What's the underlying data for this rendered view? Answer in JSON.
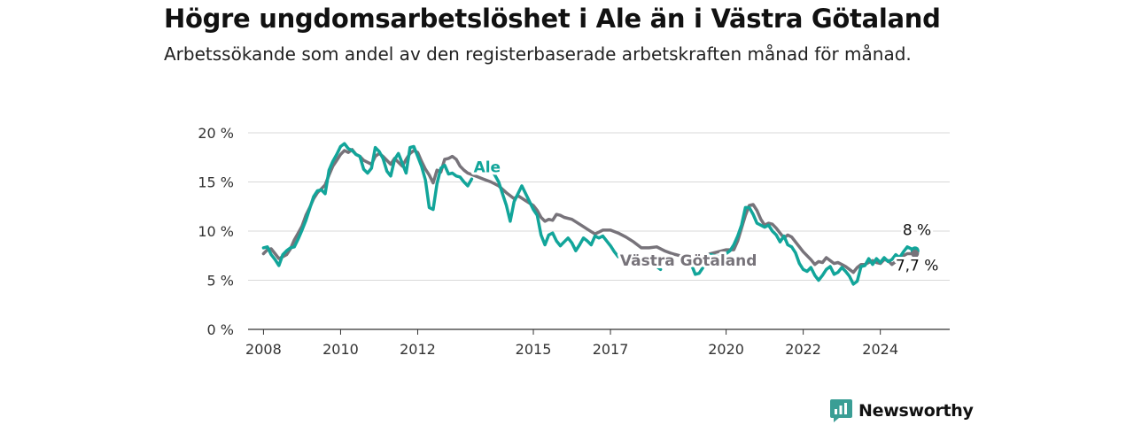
{
  "title": "Högre ungdomsarbetslöshet i Ale än i Västra Götaland",
  "subtitle": "Arbetssökande som andel av den registerbaserade arbetskraften månad för månad.",
  "brand": {
    "name": "Newsworthy",
    "icon": "newsworthy-logo-icon",
    "color": "#3a9e95"
  },
  "chart_data": {
    "type": "line",
    "title": "Högre ungdomsarbetslöshet i Ale än i Västra Götaland",
    "ylabel": "",
    "xlabel": "",
    "ylim": [
      0,
      20
    ],
    "xlim": [
      2007.6,
      2025.8
    ],
    "y_ticks": [
      {
        "value": 0,
        "label": "0 %"
      },
      {
        "value": 5,
        "label": "5 %"
      },
      {
        "value": 10,
        "label": "10 %"
      },
      {
        "value": 15,
        "label": "15 %"
      },
      {
        "value": 20,
        "label": "20 %"
      }
    ],
    "x_ticks": [
      {
        "value": 2008,
        "label": "2008"
      },
      {
        "value": 2010,
        "label": "2010"
      },
      {
        "value": 2012,
        "label": "2012"
      },
      {
        "value": 2015,
        "label": "2015"
      },
      {
        "value": 2017,
        "label": "2017"
      },
      {
        "value": 2020,
        "label": "2020"
      },
      {
        "value": 2022,
        "label": "2022"
      },
      {
        "value": 2024,
        "label": "2024"
      }
    ],
    "grid": "horizontal",
    "series": [
      {
        "name": "Västra Götaland",
        "color": "#77737a",
        "end_label": "7,7 %",
        "points": [
          [
            2008.0,
            7.7
          ],
          [
            2008.1,
            8.1
          ],
          [
            2008.2,
            8.2
          ],
          [
            2008.3,
            7.7
          ],
          [
            2008.4,
            7.2
          ],
          [
            2008.5,
            7.4
          ],
          [
            2008.6,
            7.6
          ],
          [
            2008.7,
            8.2
          ],
          [
            2008.8,
            9.1
          ],
          [
            2008.9,
            9.8
          ],
          [
            2009.0,
            10.5
          ],
          [
            2009.1,
            11.6
          ],
          [
            2009.2,
            12.4
          ],
          [
            2009.3,
            13.3
          ],
          [
            2009.4,
            13.9
          ],
          [
            2009.5,
            14.3
          ],
          [
            2009.6,
            14.7
          ],
          [
            2009.7,
            15.7
          ],
          [
            2009.8,
            16.6
          ],
          [
            2009.9,
            17.2
          ],
          [
            2010.0,
            17.8
          ],
          [
            2010.1,
            18.2
          ],
          [
            2010.2,
            18.0
          ],
          [
            2010.3,
            18.3
          ],
          [
            2010.4,
            17.8
          ],
          [
            2010.5,
            17.6
          ],
          [
            2010.6,
            17.2
          ],
          [
            2010.7,
            17.0
          ],
          [
            2010.8,
            16.8
          ],
          [
            2010.9,
            17.6
          ],
          [
            2011.0,
            17.9
          ],
          [
            2011.1,
            17.6
          ],
          [
            2011.2,
            17.2
          ],
          [
            2011.3,
            16.8
          ],
          [
            2011.4,
            17.4
          ],
          [
            2011.5,
            17.0
          ],
          [
            2011.6,
            16.6
          ],
          [
            2011.7,
            17.3
          ],
          [
            2011.8,
            17.9
          ],
          [
            2011.9,
            18.2
          ],
          [
            2012.0,
            18.0
          ],
          [
            2012.1,
            17.1
          ],
          [
            2012.2,
            16.3
          ],
          [
            2012.3,
            15.7
          ],
          [
            2012.4,
            14.9
          ],
          [
            2012.5,
            16.2
          ],
          [
            2012.6,
            16.0
          ],
          [
            2012.7,
            17.3
          ],
          [
            2012.8,
            17.4
          ],
          [
            2012.9,
            17.6
          ],
          [
            2013.0,
            17.3
          ],
          [
            2013.1,
            16.6
          ],
          [
            2013.2,
            16.2
          ],
          [
            2013.3,
            15.9
          ],
          [
            2013.5,
            15.6
          ],
          [
            2013.7,
            15.3
          ],
          [
            2013.9,
            15.0
          ],
          [
            2014.1,
            14.6
          ],
          [
            2014.3,
            13.9
          ],
          [
            2014.5,
            13.3
          ],
          [
            2014.6,
            13.6
          ],
          [
            2014.8,
            13.1
          ],
          [
            2015.0,
            12.6
          ],
          [
            2015.1,
            12.1
          ],
          [
            2015.2,
            11.4
          ],
          [
            2015.3,
            11.0
          ],
          [
            2015.4,
            11.2
          ],
          [
            2015.5,
            11.1
          ],
          [
            2015.6,
            11.7
          ],
          [
            2015.7,
            11.6
          ],
          [
            2015.8,
            11.4
          ],
          [
            2016.0,
            11.2
          ],
          [
            2016.2,
            10.7
          ],
          [
            2016.4,
            10.2
          ],
          [
            2016.6,
            9.7
          ],
          [
            2016.8,
            10.1
          ],
          [
            2017.0,
            10.1
          ],
          [
            2017.2,
            9.8
          ],
          [
            2017.4,
            9.4
          ],
          [
            2017.6,
            8.9
          ],
          [
            2017.8,
            8.3
          ],
          [
            2018.0,
            8.3
          ],
          [
            2018.2,
            8.4
          ],
          [
            2018.4,
            8.0
          ],
          [
            2018.6,
            7.7
          ],
          [
            2018.8,
            7.5
          ],
          [
            2019.0,
            7.4
          ],
          [
            2019.2,
            7.3
          ],
          [
            2019.4,
            7.5
          ],
          [
            2019.6,
            7.7
          ],
          [
            2019.8,
            7.9
          ],
          [
            2020.0,
            8.1
          ],
          [
            2020.2,
            8.1
          ],
          [
            2020.3,
            9.0
          ],
          [
            2020.4,
            10.3
          ],
          [
            2020.5,
            11.6
          ],
          [
            2020.6,
            12.6
          ],
          [
            2020.7,
            12.7
          ],
          [
            2020.8,
            12.1
          ],
          [
            2020.9,
            11.2
          ],
          [
            2021.0,
            10.6
          ],
          [
            2021.1,
            10.8
          ],
          [
            2021.2,
            10.7
          ],
          [
            2021.3,
            10.3
          ],
          [
            2021.4,
            9.8
          ],
          [
            2021.5,
            9.3
          ],
          [
            2021.6,
            9.6
          ],
          [
            2021.7,
            9.4
          ],
          [
            2021.8,
            8.9
          ],
          [
            2021.9,
            8.4
          ],
          [
            2022.0,
            7.9
          ],
          [
            2022.1,
            7.5
          ],
          [
            2022.2,
            7.1
          ],
          [
            2022.3,
            6.6
          ],
          [
            2022.4,
            6.9
          ],
          [
            2022.5,
            6.8
          ],
          [
            2022.6,
            7.3
          ],
          [
            2022.7,
            7.0
          ],
          [
            2022.8,
            6.7
          ],
          [
            2022.9,
            6.8
          ],
          [
            2023.0,
            6.6
          ],
          [
            2023.1,
            6.4
          ],
          [
            2023.2,
            6.1
          ],
          [
            2023.3,
            5.8
          ],
          [
            2023.4,
            6.3
          ],
          [
            2023.5,
            6.6
          ],
          [
            2023.6,
            6.6
          ],
          [
            2023.7,
            6.8
          ],
          [
            2023.8,
            7.0
          ],
          [
            2023.9,
            6.8
          ],
          [
            2024.0,
            6.7
          ],
          [
            2024.1,
            7.1
          ],
          [
            2024.2,
            7.0
          ],
          [
            2024.3,
            6.6
          ],
          [
            2024.4,
            6.9
          ],
          [
            2024.5,
            7.4
          ],
          [
            2024.6,
            7.5
          ],
          [
            2024.7,
            7.7
          ],
          [
            2024.8,
            7.7
          ],
          [
            2024.9,
            7.7
          ]
        ]
      },
      {
        "name": "Ale",
        "color": "#12a59a",
        "end_label": "8 %",
        "points": [
          [
            2008.0,
            8.3
          ],
          [
            2008.1,
            8.4
          ],
          [
            2008.2,
            7.6
          ],
          [
            2008.3,
            7.1
          ],
          [
            2008.4,
            6.5
          ],
          [
            2008.5,
            7.6
          ],
          [
            2008.6,
            8.0
          ],
          [
            2008.7,
            8.3
          ],
          [
            2008.8,
            8.4
          ],
          [
            2008.9,
            9.2
          ],
          [
            2009.0,
            10.1
          ],
          [
            2009.1,
            11.1
          ],
          [
            2009.2,
            12.3
          ],
          [
            2009.3,
            13.5
          ],
          [
            2009.4,
            14.1
          ],
          [
            2009.5,
            14.2
          ],
          [
            2009.6,
            13.8
          ],
          [
            2009.7,
            16.2
          ],
          [
            2009.8,
            17.1
          ],
          [
            2009.9,
            17.8
          ],
          [
            2010.0,
            18.6
          ],
          [
            2010.1,
            18.9
          ],
          [
            2010.2,
            18.4
          ],
          [
            2010.3,
            18.2
          ],
          [
            2010.4,
            17.8
          ],
          [
            2010.5,
            17.6
          ],
          [
            2010.6,
            16.3
          ],
          [
            2010.7,
            15.9
          ],
          [
            2010.8,
            16.4
          ],
          [
            2010.9,
            18.5
          ],
          [
            2011.0,
            18.1
          ],
          [
            2011.1,
            17.4
          ],
          [
            2011.2,
            16.1
          ],
          [
            2011.3,
            15.6
          ],
          [
            2011.4,
            17.3
          ],
          [
            2011.5,
            17.9
          ],
          [
            2011.6,
            16.9
          ],
          [
            2011.7,
            15.9
          ],
          [
            2011.8,
            18.5
          ],
          [
            2011.9,
            18.6
          ],
          [
            2012.0,
            17.6
          ],
          [
            2012.1,
            16.6
          ],
          [
            2012.2,
            15.2
          ],
          [
            2012.3,
            12.4
          ],
          [
            2012.4,
            12.2
          ],
          [
            2012.5,
            14.8
          ],
          [
            2012.6,
            16.4
          ],
          [
            2012.7,
            16.7
          ],
          [
            2012.8,
            15.8
          ],
          [
            2012.9,
            15.9
          ],
          [
            2013.0,
            15.6
          ],
          [
            2013.1,
            15.5
          ],
          [
            2013.2,
            15.0
          ],
          [
            2013.3,
            14.6
          ],
          [
            2013.4,
            15.3
          ],
          [
            2013.9,
            16.4
          ],
          [
            2014.1,
            15.0
          ],
          [
            2014.2,
            13.8
          ],
          [
            2014.3,
            12.6
          ],
          [
            2014.4,
            11.0
          ],
          [
            2014.5,
            13.0
          ],
          [
            2014.7,
            14.6
          ],
          [
            2014.9,
            13.0
          ],
          [
            2015.0,
            12.2
          ],
          [
            2015.1,
            11.6
          ],
          [
            2015.2,
            9.6
          ],
          [
            2015.3,
            8.6
          ],
          [
            2015.4,
            9.6
          ],
          [
            2015.5,
            9.8
          ],
          [
            2015.6,
            9.0
          ],
          [
            2015.7,
            8.5
          ],
          [
            2015.8,
            8.9
          ],
          [
            2015.9,
            9.3
          ],
          [
            2016.0,
            8.8
          ],
          [
            2016.1,
            8.0
          ],
          [
            2016.2,
            8.6
          ],
          [
            2016.3,
            9.3
          ],
          [
            2016.4,
            9.0
          ],
          [
            2016.5,
            8.6
          ],
          [
            2016.6,
            9.5
          ],
          [
            2016.7,
            9.3
          ],
          [
            2016.8,
            9.5
          ],
          [
            2016.9,
            9.0
          ],
          [
            2017.0,
            8.5
          ],
          [
            2017.1,
            7.9
          ],
          [
            2017.2,
            7.4
          ],
          [
            2018.2,
            6.4
          ],
          [
            2018.3,
            6.1
          ],
          [
            2019.1,
            6.6
          ],
          [
            2019.2,
            5.6
          ],
          [
            2019.3,
            5.7
          ],
          [
            2019.4,
            6.3
          ],
          [
            2019.6,
            7.6
          ],
          [
            2019.8,
            7.4
          ],
          [
            2020.0,
            7.7
          ],
          [
            2020.1,
            8.0
          ],
          [
            2020.2,
            8.6
          ],
          [
            2020.3,
            9.5
          ],
          [
            2020.4,
            10.6
          ],
          [
            2020.5,
            12.4
          ],
          [
            2020.6,
            12.4
          ],
          [
            2020.7,
            11.7
          ],
          [
            2020.8,
            10.8
          ],
          [
            2020.9,
            10.6
          ],
          [
            2021.0,
            10.4
          ],
          [
            2021.1,
            10.6
          ],
          [
            2021.2,
            10.0
          ],
          [
            2021.3,
            9.6
          ],
          [
            2021.4,
            8.9
          ],
          [
            2021.5,
            9.5
          ],
          [
            2021.6,
            8.6
          ],
          [
            2021.7,
            8.4
          ],
          [
            2021.8,
            7.8
          ],
          [
            2021.9,
            6.7
          ],
          [
            2022.0,
            6.1
          ],
          [
            2022.1,
            5.9
          ],
          [
            2022.2,
            6.3
          ],
          [
            2022.3,
            5.5
          ],
          [
            2022.4,
            5.0
          ],
          [
            2022.5,
            5.5
          ],
          [
            2022.6,
            6.1
          ],
          [
            2022.7,
            6.4
          ],
          [
            2022.8,
            5.6
          ],
          [
            2022.9,
            5.8
          ],
          [
            2023.0,
            6.3
          ],
          [
            2023.1,
            5.9
          ],
          [
            2023.2,
            5.4
          ],
          [
            2023.3,
            4.6
          ],
          [
            2023.4,
            4.9
          ],
          [
            2023.5,
            6.4
          ],
          [
            2023.6,
            6.5
          ],
          [
            2023.7,
            7.2
          ],
          [
            2023.8,
            6.6
          ],
          [
            2023.9,
            7.2
          ],
          [
            2024.0,
            6.8
          ],
          [
            2024.1,
            7.3
          ],
          [
            2024.2,
            6.9
          ],
          [
            2024.3,
            7.1
          ],
          [
            2024.4,
            7.6
          ],
          [
            2024.5,
            7.3
          ],
          [
            2024.6,
            7.9
          ],
          [
            2024.7,
            8.4
          ],
          [
            2024.8,
            8.2
          ],
          [
            2024.9,
            8.0
          ]
        ]
      }
    ]
  }
}
